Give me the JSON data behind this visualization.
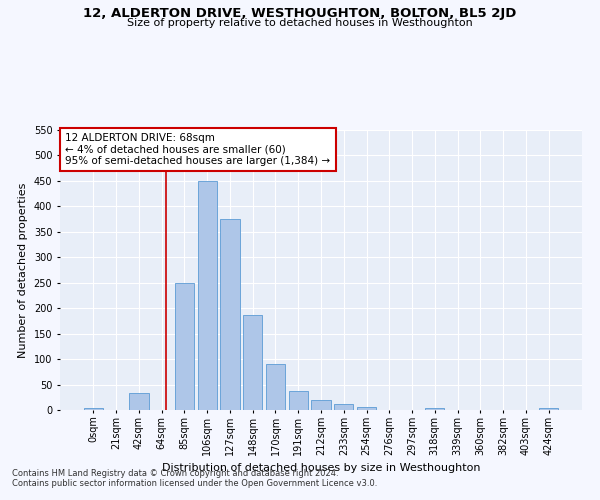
{
  "title": "12, ALDERTON DRIVE, WESTHOUGHTON, BOLTON, BL5 2JD",
  "subtitle": "Size of property relative to detached houses in Westhoughton",
  "xlabel": "Distribution of detached houses by size in Westhoughton",
  "ylabel": "Number of detached properties",
  "footer_line1": "Contains HM Land Registry data © Crown copyright and database right 2024.",
  "footer_line2": "Contains public sector information licensed under the Open Government Licence v3.0.",
  "annotation_line1": "12 ALDERTON DRIVE: 68sqm",
  "annotation_line2": "← 4% of detached houses are smaller (60)",
  "annotation_line3": "95% of semi-detached houses are larger (1,384) →",
  "bar_labels": [
    "0sqm",
    "21sqm",
    "42sqm",
    "64sqm",
    "85sqm",
    "106sqm",
    "127sqm",
    "148sqm",
    "170sqm",
    "191sqm",
    "212sqm",
    "233sqm",
    "254sqm",
    "276sqm",
    "297sqm",
    "318sqm",
    "339sqm",
    "360sqm",
    "382sqm",
    "403sqm",
    "424sqm"
  ],
  "bar_values": [
    3,
    0,
    33,
    0,
    250,
    450,
    375,
    187,
    90,
    38,
    20,
    12,
    5,
    0,
    0,
    4,
    0,
    0,
    0,
    0,
    3
  ],
  "bar_color": "#aec6e8",
  "bar_edge_color": "#5b9bd5",
  "background_color": "#e8eef8",
  "fig_background_color": "#f5f7ff",
  "grid_color": "#ffffff",
  "redline_color": "#cc0000",
  "annotation_box_edge": "#cc0000",
  "ylim": [
    0,
    550
  ],
  "yticks": [
    0,
    50,
    100,
    150,
    200,
    250,
    300,
    350,
    400,
    450,
    500,
    550
  ],
  "title_fontsize": 9.5,
  "subtitle_fontsize": 8,
  "ylabel_fontsize": 8,
  "xlabel_fontsize": 8,
  "tick_fontsize": 7,
  "annotation_fontsize": 7.5,
  "footer_fontsize": 6
}
